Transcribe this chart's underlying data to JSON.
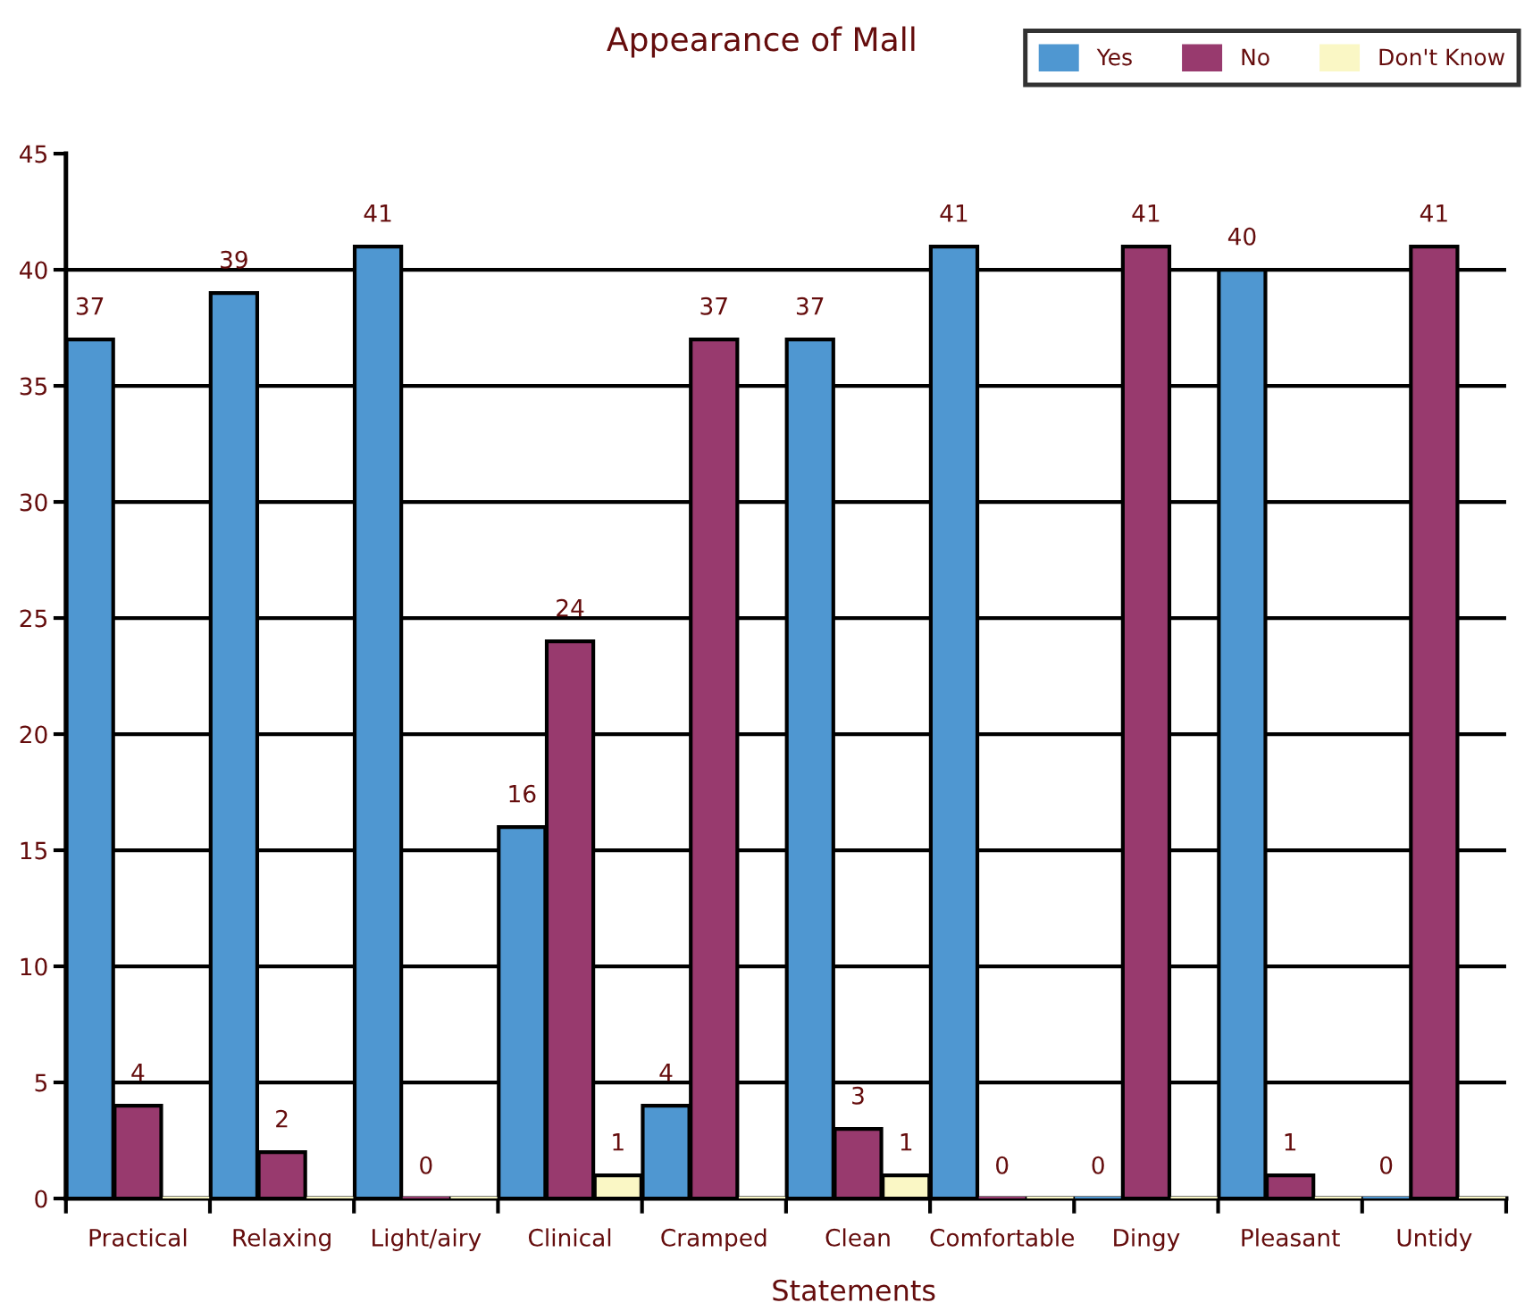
{
  "chart_data": {
    "type": "bar",
    "title": "Appearance of Mall",
    "xlabel": "Statements",
    "categories": [
      "Practical",
      "Relaxing",
      "Light/airy",
      "Clinical",
      "Cramped",
      "Clean",
      "Comfortable",
      "Dingy",
      "Pleasant",
      "Untidy"
    ],
    "series": [
      {
        "name": "Yes",
        "color": "#4f97d1",
        "values": [
          37,
          39,
          41,
          16,
          4,
          37,
          41,
          0,
          40,
          0
        ],
        "value_labels": [
          "37",
          "39",
          "41",
          "16",
          "4",
          "37",
          "41",
          "0",
          "40",
          "0"
        ]
      },
      {
        "name": "No",
        "color": "#983a6e",
        "values": [
          4,
          2,
          0,
          24,
          37,
          3,
          0,
          41,
          1,
          41
        ],
        "value_labels": [
          "4",
          "2",
          "0",
          "24",
          "37",
          "3",
          "0",
          "41",
          "1",
          "41"
        ]
      },
      {
        "name": "Don't Know",
        "color": "#faf7c5",
        "values": [
          0,
          0,
          0,
          1,
          0,
          1,
          0,
          0,
          0,
          0
        ],
        "value_labels": [
          null,
          null,
          null,
          "1",
          null,
          "1",
          null,
          null,
          null,
          null
        ]
      }
    ],
    "ylim": [
      0,
      45
    ],
    "yticks": [
      0,
      5,
      10,
      15,
      20,
      25,
      30,
      35,
      40,
      45
    ],
    "grid": "y",
    "legend": "top right"
  }
}
